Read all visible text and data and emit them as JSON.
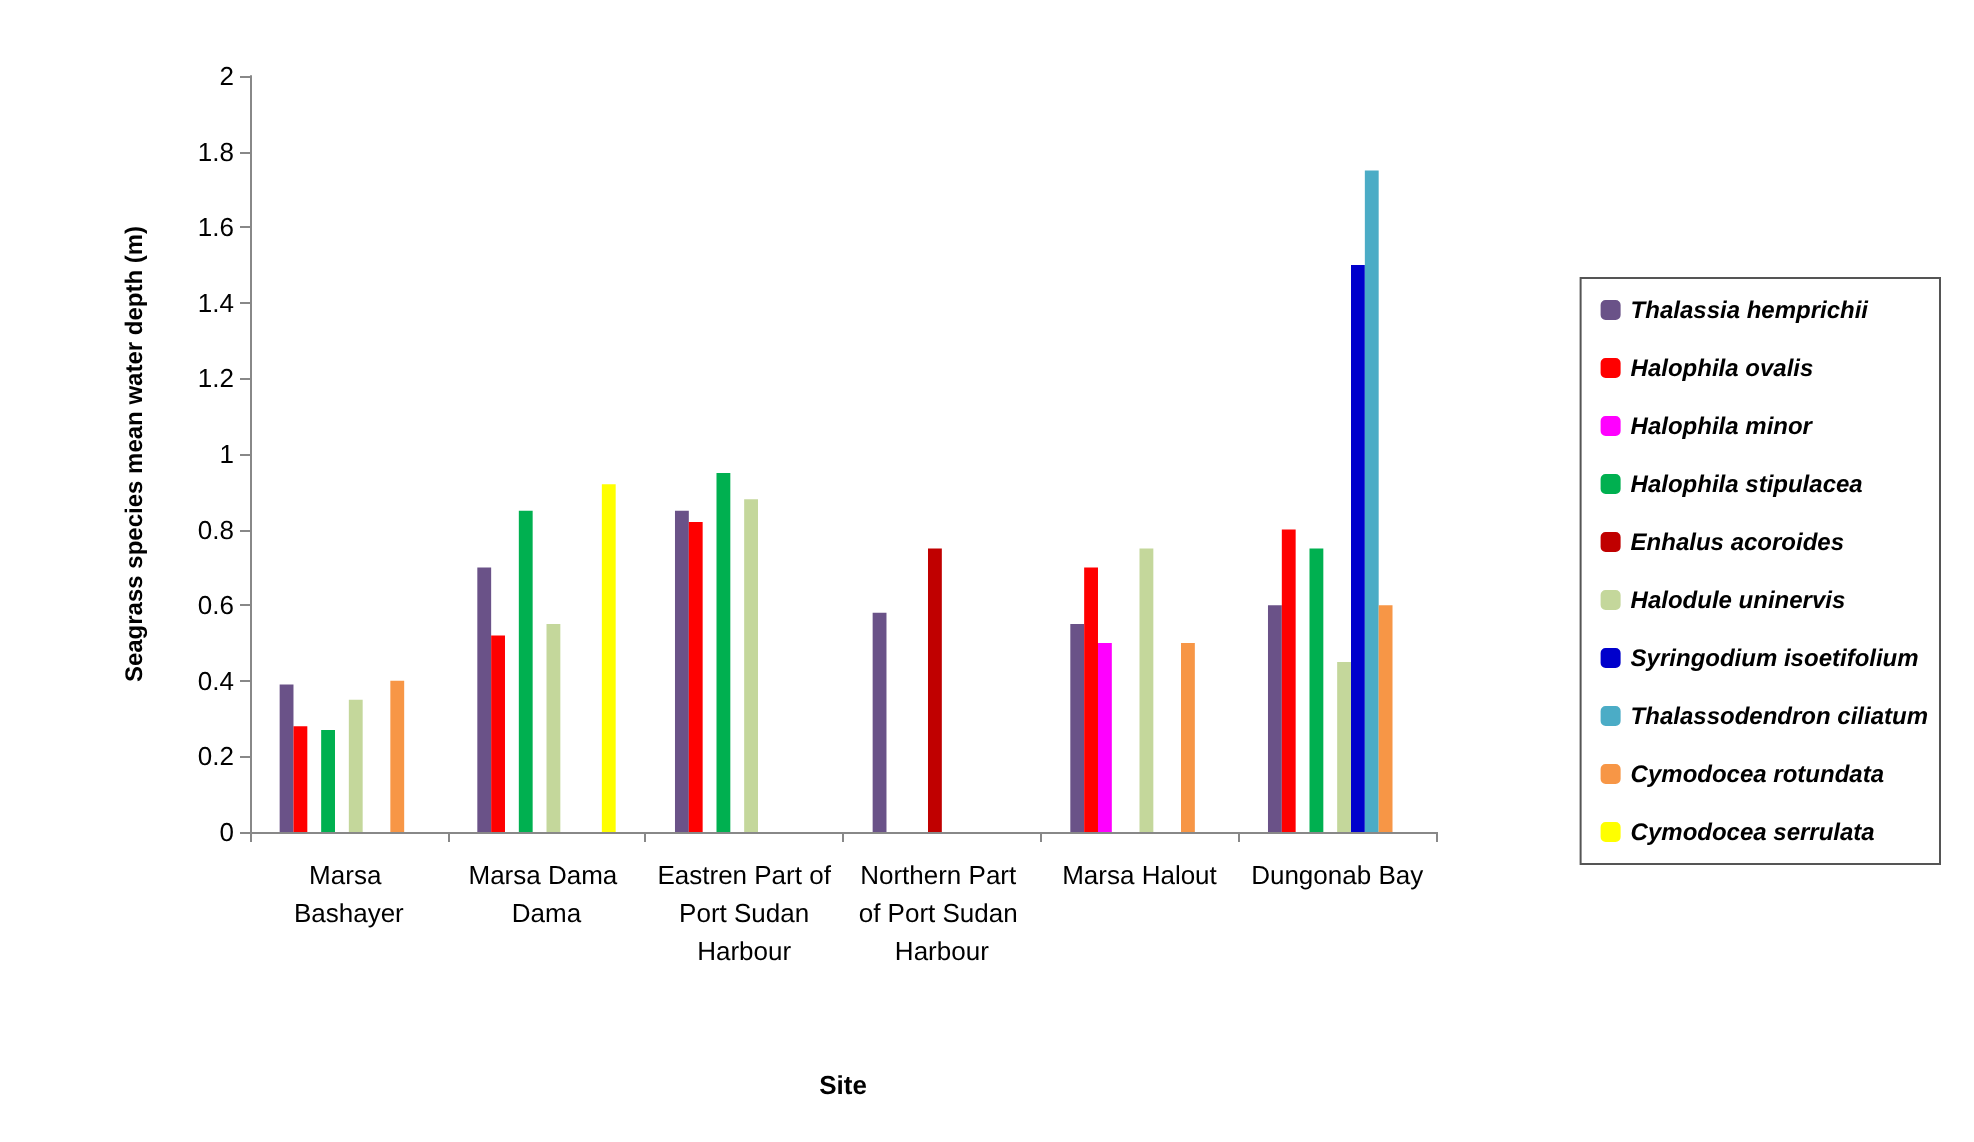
{
  "chart_data": {
    "type": "bar",
    "xlabel": "Site",
    "ylabel": "Seagrass species mean water depth (m)",
    "categories": [
      "Marsa Bashayer",
      "Marsa Dama Dama",
      "Eastren Part of Port Sudan Harbour",
      "Northern Part of Port Sudan Harbour",
      "Marsa Halout",
      "Dungonab Bay"
    ],
    "series": [
      {
        "name": "Thalassia hemprichii",
        "color": "#6a5288",
        "values": [
          0.39,
          0.7,
          0.85,
          0.58,
          0.55,
          0.6
        ]
      },
      {
        "name": "Halophila ovalis",
        "color": "#ff0000",
        "values": [
          0.28,
          0.52,
          0.82,
          null,
          0.7,
          0.8
        ]
      },
      {
        "name": "Halophila minor",
        "color": "#ff00ff",
        "values": [
          null,
          null,
          null,
          null,
          0.5,
          null
        ]
      },
      {
        "name": "Halophila stipulacea",
        "color": "#00b050",
        "values": [
          0.27,
          0.85,
          0.95,
          null,
          null,
          0.75
        ]
      },
      {
        "name": "Enhalus acoroides",
        "color": "#c00000",
        "values": [
          null,
          null,
          null,
          0.75,
          null,
          null
        ]
      },
      {
        "name": "Halodule uninervis",
        "color": "#c4d79b",
        "values": [
          0.35,
          0.55,
          0.88,
          null,
          0.75,
          0.45
        ]
      },
      {
        "name": "Syringodium isoetifolium",
        "color": "#0000cc",
        "values": [
          null,
          null,
          null,
          null,
          null,
          1.5
        ]
      },
      {
        "name": "Thalassodendron ciliatum",
        "color": "#4bacc6",
        "values": [
          null,
          null,
          null,
          null,
          null,
          1.75
        ]
      },
      {
        "name": "Cymodocea rotundata",
        "color": "#f79646",
        "values": [
          0.4,
          null,
          null,
          null,
          0.5,
          0.6
        ]
      },
      {
        "name": "Cymodocea serrulata",
        "color": "#ffff00",
        "values": [
          null,
          0.92,
          null,
          null,
          null,
          null
        ]
      }
    ],
    "ylim": [
      0,
      2
    ],
    "yticks": [
      0,
      0.2,
      0.4,
      0.6,
      0.8,
      1,
      1.2,
      1.4,
      1.6,
      1.8,
      2
    ],
    "grid": false,
    "legend": "right"
  }
}
